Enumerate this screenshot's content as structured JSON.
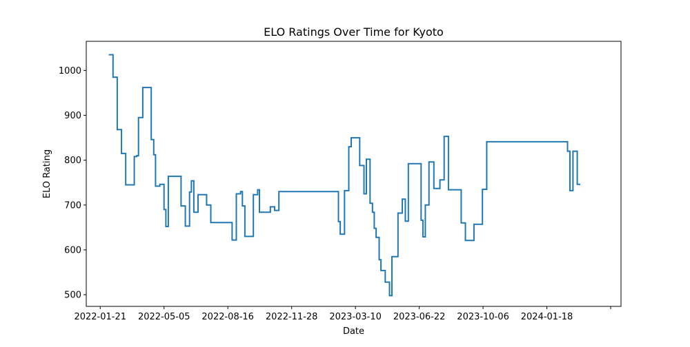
{
  "chart_data": {
    "type": "line",
    "title": "ELO Ratings Over Time for Kyoto",
    "xlabel": "Date",
    "ylabel": "ELO Rating",
    "x_tick_labels": [
      "2022-01-21",
      "2022-05-05",
      "2022-08-16",
      "2022-11-28",
      "2023-03-10",
      "2023-06-22",
      "2023-10-06",
      "2024-01-18"
    ],
    "y_tick_labels": [
      "500",
      "600",
      "700",
      "800",
      "900",
      "1000"
    ],
    "xlim": [
      "2021-12-29",
      "2024-05-27"
    ],
    "ylim": [
      474,
      1065
    ],
    "grid": false,
    "series": [
      {
        "color": "#1f77b4",
        "points": [
          [
            "2022-02-04",
            1035
          ],
          [
            "2022-02-11",
            1035
          ],
          [
            "2022-02-11",
            985
          ],
          [
            "2022-02-18",
            985
          ],
          [
            "2022-02-18",
            868
          ],
          [
            "2022-02-25",
            868
          ],
          [
            "2022-02-25",
            815
          ],
          [
            "2022-03-04",
            815
          ],
          [
            "2022-03-04",
            745
          ],
          [
            "2022-03-18",
            745
          ],
          [
            "2022-03-18",
            808
          ],
          [
            "2022-03-22",
            808
          ],
          [
            "2022-03-22",
            810
          ],
          [
            "2022-03-25",
            810
          ],
          [
            "2022-03-25",
            895
          ],
          [
            "2022-04-01",
            895
          ],
          [
            "2022-04-01",
            962
          ],
          [
            "2022-04-15",
            962
          ],
          [
            "2022-04-15",
            846
          ],
          [
            "2022-04-19",
            846
          ],
          [
            "2022-04-19",
            812
          ],
          [
            "2022-04-22",
            812
          ],
          [
            "2022-04-22",
            742
          ],
          [
            "2022-04-29",
            742
          ],
          [
            "2022-04-29",
            746
          ],
          [
            "2022-05-06",
            746
          ],
          [
            "2022-05-06",
            690
          ],
          [
            "2022-05-09",
            690
          ],
          [
            "2022-05-09",
            652
          ],
          [
            "2022-05-13",
            652
          ],
          [
            "2022-05-13",
            764
          ],
          [
            "2022-06-03",
            764
          ],
          [
            "2022-06-03",
            698
          ],
          [
            "2022-06-10",
            698
          ],
          [
            "2022-06-10",
            653
          ],
          [
            "2022-06-17",
            653
          ],
          [
            "2022-06-17",
            729
          ],
          [
            "2022-06-20",
            729
          ],
          [
            "2022-06-20",
            754
          ],
          [
            "2022-06-24",
            754
          ],
          [
            "2022-06-24",
            684
          ],
          [
            "2022-07-01",
            684
          ],
          [
            "2022-07-01",
            723
          ],
          [
            "2022-07-15",
            723
          ],
          [
            "2022-07-15",
            700
          ],
          [
            "2022-07-22",
            700
          ],
          [
            "2022-07-22",
            661
          ],
          [
            "2022-08-26",
            661
          ],
          [
            "2022-08-26",
            622
          ],
          [
            "2022-09-02",
            622
          ],
          [
            "2022-09-02",
            725
          ],
          [
            "2022-09-09",
            725
          ],
          [
            "2022-09-09",
            730
          ],
          [
            "2022-09-12",
            730
          ],
          [
            "2022-09-12",
            698
          ],
          [
            "2022-09-16",
            698
          ],
          [
            "2022-09-16",
            630
          ],
          [
            "2022-09-30",
            630
          ],
          [
            "2022-09-30",
            723
          ],
          [
            "2022-10-07",
            723
          ],
          [
            "2022-10-07",
            734
          ],
          [
            "2022-10-10",
            734
          ],
          [
            "2022-10-10",
            684
          ],
          [
            "2022-10-28",
            684
          ],
          [
            "2022-10-28",
            696
          ],
          [
            "2022-11-04",
            696
          ],
          [
            "2022-11-04",
            688
          ],
          [
            "2022-11-11",
            688
          ],
          [
            "2022-11-11",
            730
          ],
          [
            "2023-02-17",
            730
          ],
          [
            "2023-02-17",
            663
          ],
          [
            "2023-02-20",
            663
          ],
          [
            "2023-02-20",
            635
          ],
          [
            "2023-02-27",
            635
          ],
          [
            "2023-02-27",
            732
          ],
          [
            "2023-03-06",
            732
          ],
          [
            "2023-03-06",
            830
          ],
          [
            "2023-03-10",
            830
          ],
          [
            "2023-03-10",
            850
          ],
          [
            "2023-03-24",
            850
          ],
          [
            "2023-03-24",
            788
          ],
          [
            "2023-03-31",
            788
          ],
          [
            "2023-03-31",
            725
          ],
          [
            "2023-04-04",
            725
          ],
          [
            "2023-04-04",
            802
          ],
          [
            "2023-04-10",
            802
          ],
          [
            "2023-04-10",
            704
          ],
          [
            "2023-04-14",
            704
          ],
          [
            "2023-04-14",
            684
          ],
          [
            "2023-04-17",
            684
          ],
          [
            "2023-04-17",
            648
          ],
          [
            "2023-04-20",
            648
          ],
          [
            "2023-04-20",
            628
          ],
          [
            "2023-04-25",
            628
          ],
          [
            "2023-04-25",
            578
          ],
          [
            "2023-04-28",
            578
          ],
          [
            "2023-04-28",
            554
          ],
          [
            "2023-05-05",
            554
          ],
          [
            "2023-05-05",
            528
          ],
          [
            "2023-05-12",
            528
          ],
          [
            "2023-05-12",
            498
          ],
          [
            "2023-05-16",
            498
          ],
          [
            "2023-05-16",
            585
          ],
          [
            "2023-05-26",
            585
          ],
          [
            "2023-05-26",
            682
          ],
          [
            "2023-06-02",
            682
          ],
          [
            "2023-06-02",
            713
          ],
          [
            "2023-06-07",
            713
          ],
          [
            "2023-06-07",
            664
          ],
          [
            "2023-06-12",
            664
          ],
          [
            "2023-06-12",
            792
          ],
          [
            "2023-07-03",
            792
          ],
          [
            "2023-07-03",
            666
          ],
          [
            "2023-07-06",
            666
          ],
          [
            "2023-07-06",
            629
          ],
          [
            "2023-07-10",
            629
          ],
          [
            "2023-07-10",
            700
          ],
          [
            "2023-07-16",
            700
          ],
          [
            "2023-07-16",
            796
          ],
          [
            "2023-07-24",
            796
          ],
          [
            "2023-07-24",
            737
          ],
          [
            "2023-08-03",
            737
          ],
          [
            "2023-08-03",
            756
          ],
          [
            "2023-08-10",
            756
          ],
          [
            "2023-08-10",
            853
          ],
          [
            "2023-08-17",
            853
          ],
          [
            "2023-08-17",
            734
          ],
          [
            "2023-09-07",
            734
          ],
          [
            "2023-09-07",
            660
          ],
          [
            "2023-09-14",
            660
          ],
          [
            "2023-09-14",
            621
          ],
          [
            "2023-09-28",
            621
          ],
          [
            "2023-09-28",
            657
          ],
          [
            "2023-10-12",
            657
          ],
          [
            "2023-10-12",
            735
          ],
          [
            "2023-10-19",
            735
          ],
          [
            "2023-10-19",
            841
          ],
          [
            "2024-02-29",
            841
          ],
          [
            "2024-02-29",
            820
          ],
          [
            "2024-03-04",
            820
          ],
          [
            "2024-03-04",
            732
          ],
          [
            "2024-03-09",
            732
          ],
          [
            "2024-03-09",
            820
          ],
          [
            "2024-03-16",
            820
          ],
          [
            "2024-03-16",
            746
          ],
          [
            "2024-03-21",
            746
          ]
        ]
      }
    ]
  }
}
